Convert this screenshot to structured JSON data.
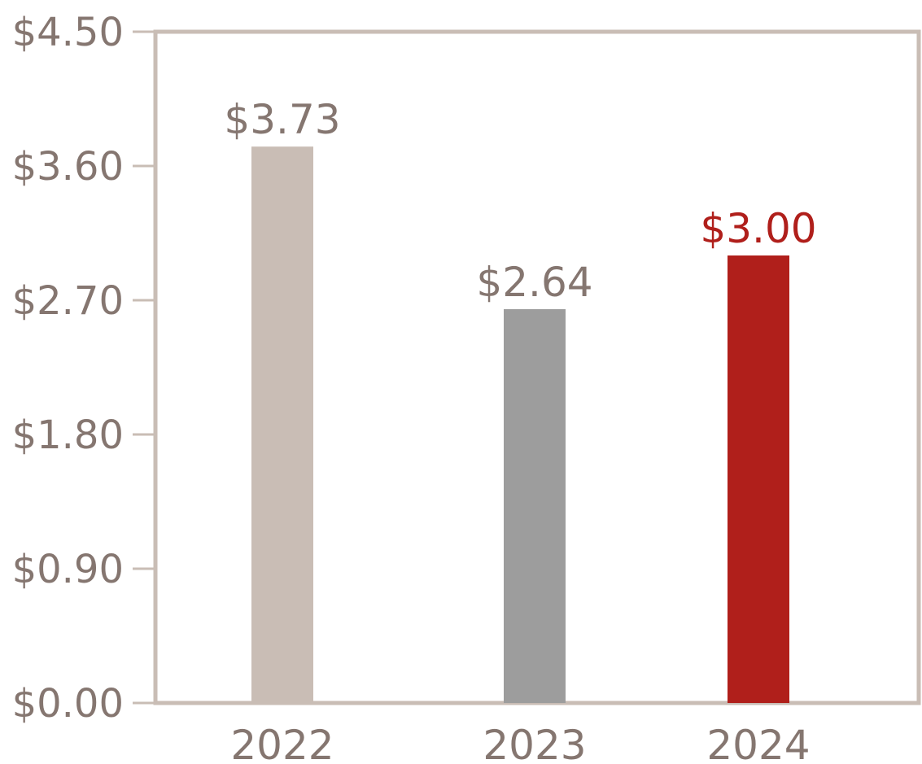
{
  "chart_data": {
    "type": "bar",
    "categories": [
      "2022",
      "2023",
      "2024"
    ],
    "values": [
      3.73,
      2.64,
      3.0
    ],
    "data_labels": [
      "$3.73",
      "$2.64",
      "$3.00"
    ],
    "bar_colors": [
      "#c9bdb5",
      "#9d9d9d",
      "#b01f1b"
    ],
    "label_colors": [
      "#857670",
      "#857670",
      "#b01f1b"
    ],
    "axis_color": "#c9bdb5",
    "text_color": "#857670",
    "ylim": [
      0,
      4.5
    ],
    "yticks": [
      0,
      0.9,
      1.8,
      2.7,
      3.6,
      4.5
    ],
    "ytick_labels": [
      "$0.00",
      "$0.90",
      "$1.80",
      "$2.70",
      "$3.60",
      "$4.50"
    ],
    "grid": false,
    "title": "",
    "xlabel": "",
    "ylabel": ""
  }
}
